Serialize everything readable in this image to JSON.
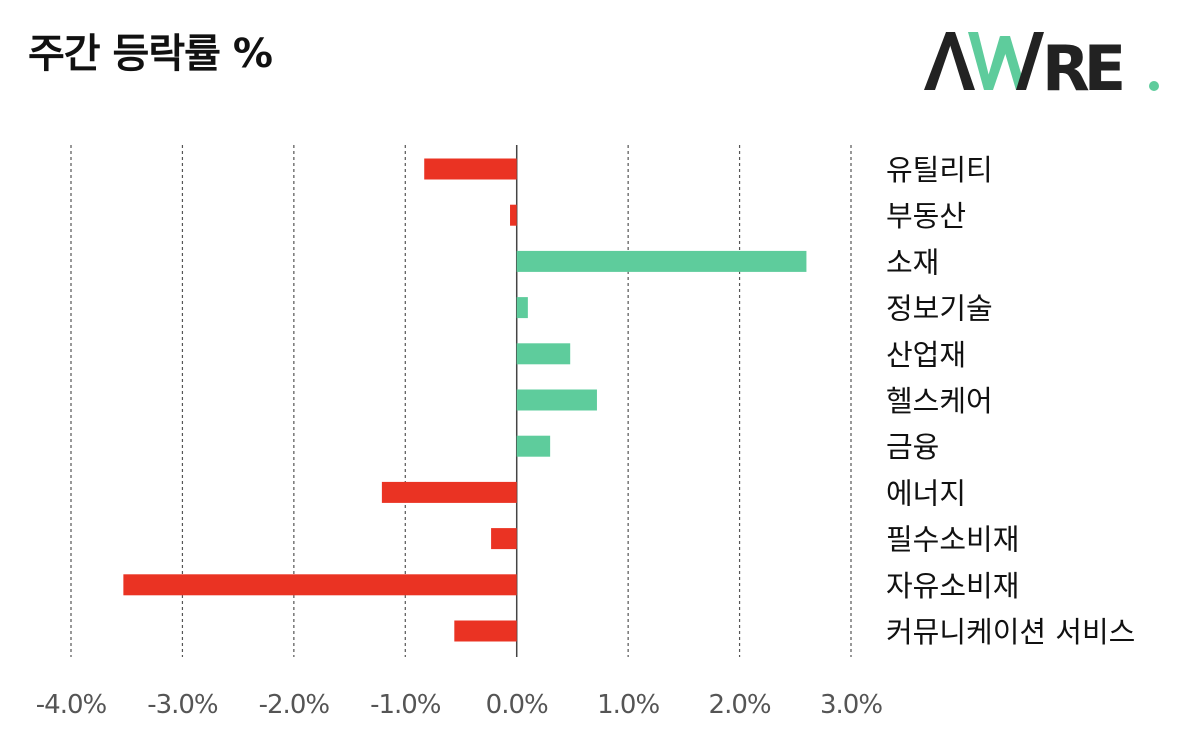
{
  "header": {
    "title": "주간 등락률 %",
    "logo_text": "AWARE",
    "logo_dot": "."
  },
  "colors": {
    "positive": "#5ecc9c",
    "negative": "#ea3323",
    "logo_dark": "#222222",
    "logo_accent": "#5ecc9c",
    "grid": "#555555",
    "tick_text": "#555555",
    "label_text": "#111111"
  },
  "chart_data": {
    "type": "bar",
    "orientation": "horizontal",
    "title": "주간 등락률 %",
    "xlabel": "",
    "ylabel": "",
    "xlim": [
      -4.0,
      3.0
    ],
    "grid": true,
    "legend": "none",
    "x_ticks": [
      -4.0,
      -3.0,
      -2.0,
      -1.0,
      0.0,
      1.0,
      2.0,
      3.0
    ],
    "x_tick_labels": [
      "-4.0%",
      "-3.0%",
      "-2.0%",
      "-1.0%",
      "0.0%",
      "1.0%",
      "2.0%",
      "3.0%"
    ],
    "categories": [
      "유틸리티",
      "부동산",
      "소재",
      "정보기술",
      "산업재",
      "헬스케어",
      "금융",
      "에너지",
      "필수소비재",
      "자유소비재",
      "커뮤니케이션 서비스"
    ],
    "values": [
      -0.83,
      -0.06,
      2.6,
      0.1,
      0.48,
      0.72,
      0.3,
      -1.21,
      -0.23,
      -3.53,
      -0.56
    ]
  }
}
